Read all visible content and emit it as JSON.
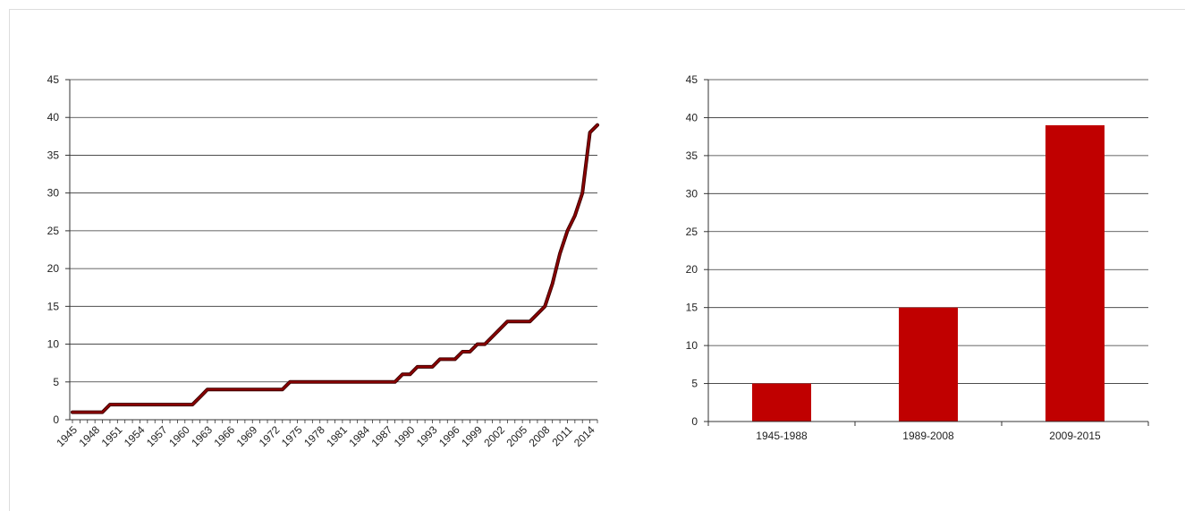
{
  "chart_data": [
    {
      "type": "line",
      "title": "",
      "xlabel": "",
      "ylabel": "",
      "ylim": [
        0,
        45
      ],
      "yticks": [
        0,
        5,
        10,
        15,
        20,
        25,
        30,
        35,
        40,
        45
      ],
      "xtick_labels": [
        "1945",
        "1948",
        "1951",
        "1954",
        "1957",
        "1960",
        "1963",
        "1966",
        "1969",
        "1972",
        "1975",
        "1978",
        "1981",
        "1984",
        "1987",
        "1990",
        "1993",
        "1996",
        "1999",
        "2002",
        "2005",
        "2008",
        "2011",
        "2014"
      ],
      "grid": true,
      "legend": "none",
      "color": "#8b0000",
      "x": [
        1945,
        1946,
        1947,
        1948,
        1949,
        1950,
        1951,
        1952,
        1953,
        1954,
        1955,
        1956,
        1957,
        1958,
        1959,
        1960,
        1961,
        1962,
        1963,
        1964,
        1965,
        1966,
        1967,
        1968,
        1969,
        1970,
        1971,
        1972,
        1973,
        1974,
        1975,
        1976,
        1977,
        1978,
        1979,
        1980,
        1981,
        1982,
        1983,
        1984,
        1985,
        1986,
        1987,
        1988,
        1989,
        1990,
        1991,
        1992,
        1993,
        1994,
        1995,
        1996,
        1997,
        1998,
        1999,
        2000,
        2001,
        2002,
        2003,
        2004,
        2005,
        2006,
        2007,
        2008,
        2009,
        2010,
        2011,
        2012,
        2013,
        2014,
        2015
      ],
      "y": [
        1,
        1,
        1,
        1,
        1,
        2,
        2,
        2,
        2,
        2,
        2,
        2,
        2,
        2,
        2,
        2,
        2,
        3,
        4,
        4,
        4,
        4,
        4,
        4,
        4,
        4,
        4,
        4,
        4,
        5,
        5,
        5,
        5,
        5,
        5,
        5,
        5,
        5,
        5,
        5,
        5,
        5,
        5,
        5,
        6,
        6,
        7,
        7,
        7,
        8,
        8,
        8,
        9,
        9,
        10,
        10,
        11,
        12,
        13,
        13,
        13,
        13,
        14,
        15,
        18,
        22,
        25,
        27,
        30,
        38,
        39
      ]
    },
    {
      "type": "bar",
      "title": "",
      "xlabel": "",
      "ylabel": "",
      "ylim": [
        0,
        45
      ],
      "yticks": [
        0,
        5,
        10,
        15,
        20,
        25,
        30,
        35,
        40,
        45
      ],
      "grid": true,
      "legend": "none",
      "color": "#c00000",
      "categories": [
        "1945-1988",
        "1989-2008",
        "2009-2015"
      ],
      "values": [
        5,
        15,
        39
      ]
    }
  ]
}
